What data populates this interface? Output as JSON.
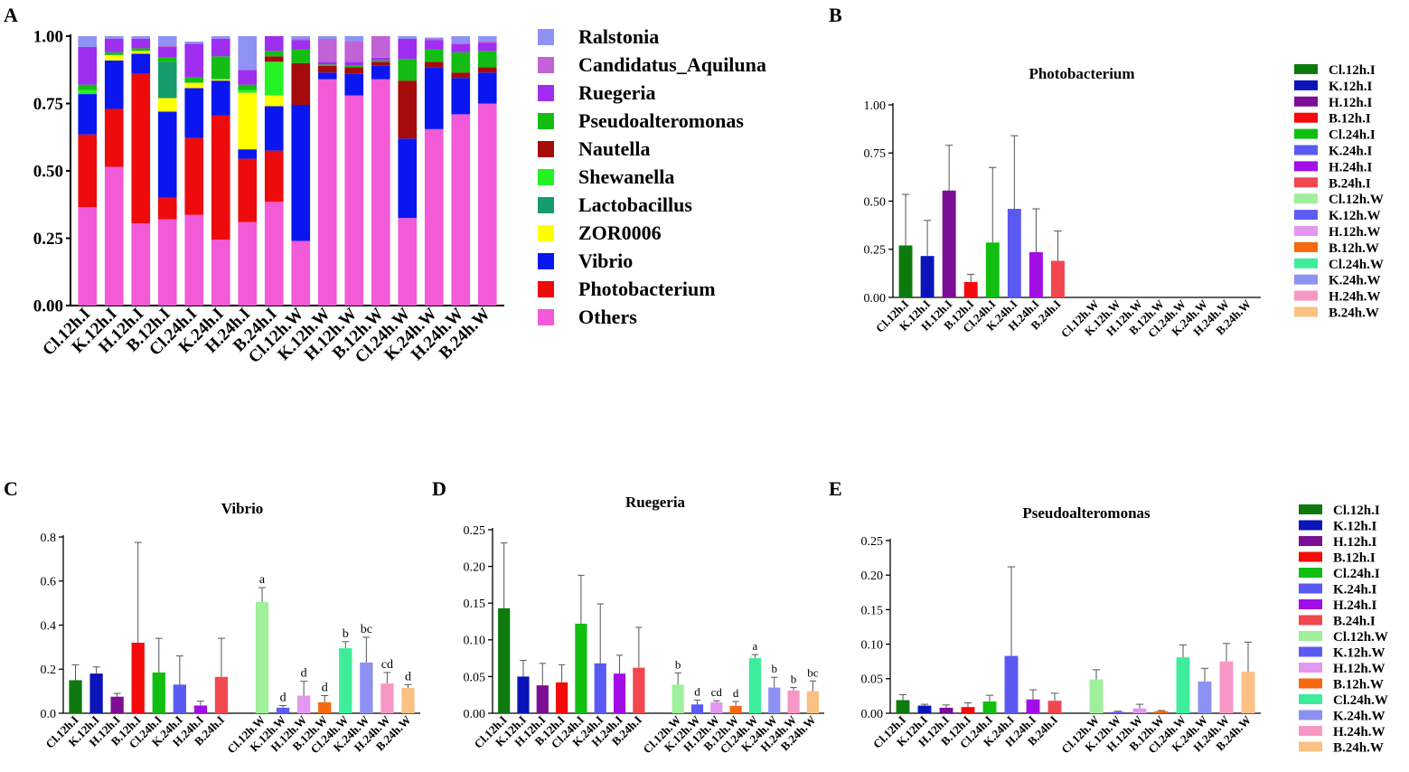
{
  "colors": {
    "Cl.12h.I": "#0e7a0e",
    "K.12h.I": "#0b14b8",
    "H.12h.I": "#7b0e94",
    "B.12h.I": "#f40a0a",
    "Cl.24h.I": "#11bf11",
    "K.24h.I": "#5a5af2",
    "H.24h.I": "#a10ee6",
    "B.24h.I": "#f2474f",
    "Cl.12h.W": "#9ff09a",
    "K.12h.W": "#5b5bf4",
    "H.12h.W": "#e397f0",
    "B.12h.W": "#f7690e",
    "Cl.24h.W": "#3ded9c",
    "K.24h.W": "#8e90f2",
    "H.24h.W": "#f797c6",
    "B.24h.W": "#fbc083"
  },
  "genus_colors": {
    "Ralstonia": "#8f92f5",
    "Candidatus_Aquiluna": "#c162d6",
    "Ruegeria": "#9f2ef0",
    "Pseudoalteromonas": "#13bd13",
    "Nautella": "#a50b0b",
    "Shewanella": "#25f225",
    "Lactobacillus": "#169c6c",
    "ZOR0006": "#ffff00",
    "Vibrio": "#0a16f0",
    "Photobacterium": "#ee0b0b",
    "Others": "#f25ad8"
  },
  "chart_data": [
    {
      "panel": "A",
      "type": "bar",
      "stacked": true,
      "title": "",
      "ylim": [
        0,
        1
      ],
      "yticks": [
        "0.00",
        "0.25",
        "0.50",
        "0.75",
        "1.00"
      ],
      "categories": [
        "Cl.12h.I",
        "K.12h.I",
        "H.12h.I",
        "B.12h.I",
        "Cl.24h.I",
        "K.24h.I",
        "H.24h.I",
        "B.24h.I",
        "Cl.12h.W",
        "K.12h.W",
        "H.12h.W",
        "B.12h.W",
        "Cl.24h.W",
        "K.24h.W",
        "H.24h.W",
        "B.24h.W"
      ],
      "legend": [
        "Ralstonia",
        "Candidatus_Aquiluna",
        "Ruegeria",
        "Pseudoalteromonas",
        "Nautella",
        "Shewanella",
        "Lactobacillus",
        "ZOR0006",
        "Vibrio",
        "Photobacterium",
        "Others"
      ],
      "series": [
        {
          "name": "Others",
          "values": [
            0.365,
            0.515,
            0.305,
            0.32,
            0.337,
            0.245,
            0.31,
            0.385,
            0.24,
            0.84,
            0.78,
            0.84,
            0.325,
            0.655,
            0.71,
            0.75
          ]
        },
        {
          "name": "Photobacterium",
          "values": [
            0.27,
            0.215,
            0.555,
            0.08,
            0.285,
            0.46,
            0.235,
            0.19,
            0,
            0,
            0,
            0,
            0,
            0,
            0,
            0
          ]
        },
        {
          "name": "Vibrio",
          "values": [
            0.15,
            0.18,
            0.075,
            0.32,
            0.185,
            0.13,
            0.035,
            0.165,
            0.505,
            0.025,
            0.08,
            0.05,
            0.295,
            0.23,
            0.135,
            0.115
          ]
        },
        {
          "name": "ZOR0006",
          "values": [
            0,
            0.02,
            0.01,
            0.05,
            0.02,
            0.005,
            0.21,
            0.04,
            0,
            0,
            0,
            0,
            0,
            0,
            0,
            0
          ]
        },
        {
          "name": "Lactobacillus",
          "values": [
            0,
            0,
            0,
            0.135,
            0,
            0,
            0,
            0,
            0,
            0,
            0,
            0,
            0,
            0,
            0,
            0
          ]
        },
        {
          "name": "Shewanella",
          "values": [
            0.015,
            0,
            0,
            0,
            0,
            0,
            0.01,
            0.125,
            0,
            0,
            0,
            0,
            0,
            0,
            0,
            0
          ]
        },
        {
          "name": "Nautella",
          "values": [
            0,
            0,
            0,
            0,
            0,
            0,
            0,
            0.02,
            0.155,
            0.025,
            0.025,
            0.015,
            0.215,
            0.02,
            0.02,
            0.02
          ]
        },
        {
          "name": "Pseudoalteromonas",
          "values": [
            0.02,
            0.01,
            0.01,
            0.015,
            0.02,
            0.085,
            0.02,
            0.02,
            0.05,
            0.005,
            0.005,
            0.005,
            0.08,
            0.045,
            0.075,
            0.06
          ]
        },
        {
          "name": "Ruegeria",
          "values": [
            0.14,
            0.05,
            0.035,
            0.04,
            0.125,
            0.065,
            0.055,
            0.06,
            0.035,
            0.01,
            0.015,
            0.01,
            0.075,
            0.035,
            0.03,
            0.03
          ]
        },
        {
          "name": "Candidatus_Aquiluna",
          "values": [
            0,
            0,
            0,
            0.005,
            0,
            0,
            0,
            0.005,
            0.005,
            0.085,
            0.075,
            0.115,
            0,
            0.005,
            0.005,
            0.005
          ]
        },
        {
          "name": "Ralstonia",
          "values": [
            0.04,
            0.01,
            0.01,
            0.035,
            0.008,
            0.01,
            0.135,
            0.005,
            0.01,
            0.01,
            0.02,
            0.015,
            0.01,
            0.005,
            0.025,
            0.02
          ]
        }
      ]
    },
    {
      "panel": "B",
      "type": "bar",
      "title": "Photobacterium",
      "ylim": [
        0,
        1
      ],
      "yticks": [
        "0.00",
        "0.25",
        "0.50",
        "0.75",
        "1.00"
      ],
      "categories": [
        "Cl.12h.I",
        "K.12h.I",
        "H.12h.I",
        "B.12h.I",
        "Cl.24h.I",
        "K.24h.I",
        "H.24h.I",
        "B.24h.I",
        "Cl.12h.W",
        "K.12h.W",
        "H.12h.W",
        "B.12h.W",
        "Cl.24h.W",
        "K.24h.W",
        "H.24h.W",
        "B.24h.W"
      ],
      "values": [
        0.27,
        0.215,
        0.555,
        0.08,
        0.285,
        0.46,
        0.235,
        0.19,
        0,
        0,
        0,
        0,
        0,
        0,
        0,
        0
      ],
      "errors": [
        0.265,
        0.185,
        0.235,
        0.04,
        0.39,
        0.38,
        0.225,
        0.155,
        0,
        0,
        0,
        0,
        0,
        0,
        0,
        0
      ],
      "letters": [
        "",
        "",
        "",
        "",
        "",
        "",
        "",
        "",
        "",
        "",
        "",
        "",
        "",
        "",
        "",
        ""
      ],
      "legend": true
    },
    {
      "panel": "C",
      "type": "bar",
      "title": "Vibrio",
      "ylim": [
        0,
        0.8
      ],
      "yticks": [
        "0.0",
        "0.2",
        "0.4",
        "0.6",
        "0.8"
      ],
      "categories": [
        "Cl.12h.I",
        "K.12h.I",
        "H.12h.I",
        "B.12h.I",
        "Cl.24h.I",
        "K.24h.I",
        "H.24h.I",
        "B.24h.I",
        "Cl.12h.W",
        "K.12h.W",
        "H.12h.W",
        "B.12h.W",
        "Cl.24h.W",
        "K.24h.W",
        "H.24h.W",
        "B.24h.W"
      ],
      "values": [
        0.15,
        0.18,
        0.075,
        0.32,
        0.185,
        0.13,
        0.035,
        0.165,
        0.505,
        0.025,
        0.08,
        0.05,
        0.295,
        0.23,
        0.135,
        0.115
      ],
      "errors": [
        0.07,
        0.03,
        0.015,
        0.455,
        0.155,
        0.13,
        0.02,
        0.175,
        0.065,
        0.01,
        0.065,
        0.03,
        0.03,
        0.115,
        0.05,
        0.015
      ],
      "letters": [
        "",
        "",
        "",
        "",
        "",
        "",
        "",
        "",
        "a",
        "d",
        "d",
        "d",
        "b",
        "bc",
        "cd",
        "d"
      ],
      "legend": false
    },
    {
      "panel": "D",
      "type": "bar",
      "title": "Ruegeria",
      "ylim": [
        0,
        0.25
      ],
      "yticks": [
        "0.00",
        "0.05",
        "0.10",
        "0.15",
        "0.20",
        "0.25"
      ],
      "categories": [
        "Cl.12h.I",
        "K.12h.I",
        "H.12h.I",
        "B.12h.I",
        "Cl.24h.I",
        "K.24h.I",
        "H.24h.I",
        "B.24h.I",
        "Cl.12h.W",
        "K.12h.W",
        "H.12h.W",
        "B.12h.W",
        "Cl.24h.W",
        "K.24h.W",
        "H.24h.W",
        "B.24h.W"
      ],
      "values": [
        0.143,
        0.05,
        0.038,
        0.042,
        0.122,
        0.068,
        0.054,
        0.062,
        0.039,
        0.012,
        0.015,
        0.01,
        0.075,
        0.035,
        0.031,
        0.03
      ],
      "errors": [
        0.089,
        0.022,
        0.03,
        0.024,
        0.066,
        0.081,
        0.025,
        0.055,
        0.016,
        0.006,
        0.002,
        0.006,
        0.005,
        0.014,
        0.004,
        0.014
      ],
      "letters": [
        "",
        "",
        "",
        "",
        "",
        "",
        "",
        "",
        "b",
        "d",
        "cd",
        "d",
        "a",
        "b",
        "b",
        "bc"
      ],
      "legend": false
    },
    {
      "panel": "E",
      "type": "bar",
      "title": "Pseudoalteromonas",
      "ylim": [
        0,
        0.25
      ],
      "yticks": [
        "0.00",
        "0.05",
        "0.10",
        "0.15",
        "0.20",
        "0.25"
      ],
      "categories": [
        "Cl.12h.I",
        "K.12h.I",
        "H.12h.I",
        "B.12h.I",
        "Cl.24h.I",
        "K.24h.I",
        "H.24h.I",
        "B.24h.I",
        "Cl.12h.W",
        "K.12h.W",
        "H.12h.W",
        "B.12h.W",
        "Cl.24h.W",
        "K.24h.W",
        "H.24h.W",
        "B.24h.W"
      ],
      "values": [
        0.019,
        0.011,
        0.008,
        0.009,
        0.017,
        0.083,
        0.02,
        0.018,
        0.049,
        0.002,
        0.007,
        0.003,
        0.081,
        0.046,
        0.075,
        0.06
      ],
      "errors": [
        0.008,
        0.002,
        0.004,
        0.006,
        0.009,
        0.129,
        0.014,
        0.011,
        0.014,
        0.001,
        0.006,
        0.001,
        0.018,
        0.019,
        0.026,
        0.043
      ],
      "letters": [
        "",
        "",
        "",
        "",
        "",
        "",
        "",
        "",
        "",
        "",
        "",
        "",
        "",
        "",
        "",
        ""
      ],
      "legend": true
    }
  ],
  "panel_labels": [
    "A",
    "B",
    "C",
    "D",
    "E"
  ]
}
